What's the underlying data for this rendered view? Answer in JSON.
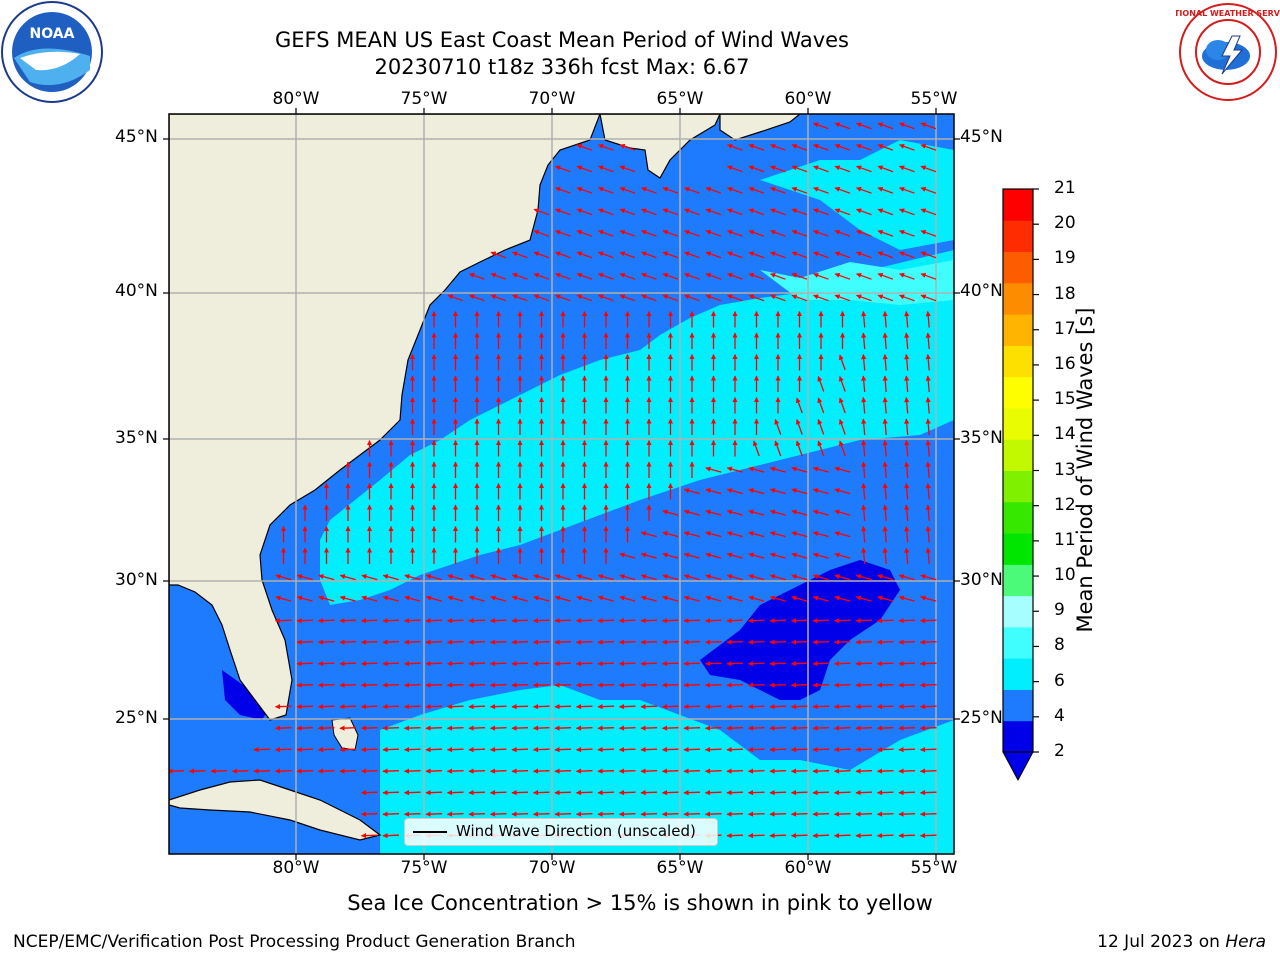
{
  "title": {
    "line1": "GEFS MEAN US East Coast Mean Period of Wind Waves",
    "line2": "20230710 t18z 336h fcst   Max: 6.67"
  },
  "logos": {
    "left": "NOAA",
    "right": "NATIONAL WEATHER SERVICE"
  },
  "map": {
    "lon_labels": [
      "80°W",
      "75°W",
      "70°W",
      "65°W",
      "60°W",
      "55°W"
    ],
    "lat_labels": [
      "45°N",
      "40°N",
      "35°N",
      "30°N",
      "25°N"
    ],
    "lon_range": [
      -85,
      -54
    ],
    "lat_range": [
      20.3,
      45.8
    ],
    "grid": true,
    "arrow_color": "#ff0000",
    "land_color": "#efeedd"
  },
  "colorbar": {
    "label": "Mean Period of Wind Waves [s]",
    "ticks": [
      "21",
      "20",
      "19",
      "18",
      "17",
      "16",
      "15",
      "14",
      "13",
      "12",
      "11",
      "10",
      "9",
      "8",
      "6",
      "4",
      "2"
    ],
    "colors": [
      "#0000e8",
      "#1e7bfe",
      "#00eefe",
      "#40fefe",
      "#a6fefe",
      "#4cfa7a",
      "#00e600",
      "#36e800",
      "#7ef000",
      "#c2f800",
      "#eafc00",
      "#fefe00",
      "#fee000",
      "#feb400",
      "#fe8c00",
      "#fe5c00",
      "#fe2c00",
      "#fe0000"
    ]
  },
  "legend": {
    "label": "Wind Wave Direction (unscaled)"
  },
  "annotation": "Sea Ice Concentration > 15% is shown in pink to yellow",
  "footer": {
    "left": "NCEP/EMC/Verification Post Processing Product Generation Branch",
    "right_prefix": "12 Jul 2023 on ",
    "right_machine": "Hera"
  }
}
